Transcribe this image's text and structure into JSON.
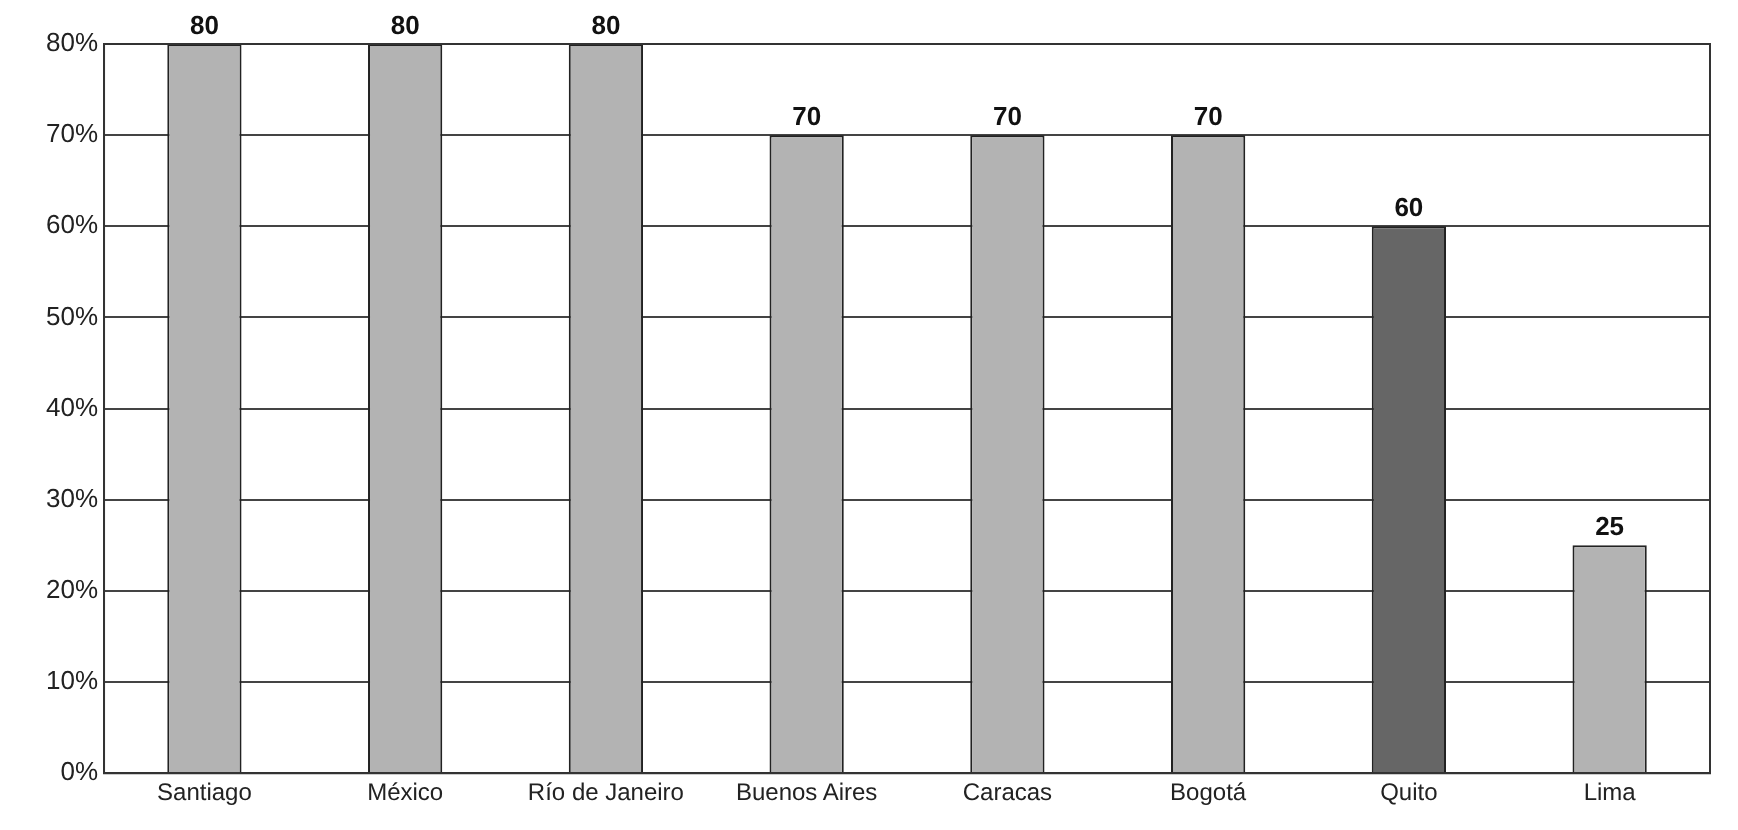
{
  "chart_data": {
    "type": "bar",
    "categories": [
      "Santiago",
      "México",
      "Río de Janeiro",
      "Buenos Aires",
      "Caracas",
      "Bogotá",
      "Quito",
      "Lima"
    ],
    "values": [
      80,
      80,
      80,
      70,
      70,
      70,
      60,
      25
    ],
    "colors": [
      "#b3b3b3",
      "#b3b3b3",
      "#b3b3b3",
      "#b3b3b3",
      "#b3b3b3",
      "#b3b3b3",
      "#666666",
      "#b3b3b3"
    ],
    "ylim": [
      0,
      80
    ],
    "yticks": [
      {
        "value": 0,
        "label": "0%"
      },
      {
        "value": 10,
        "label": "10%"
      },
      {
        "value": 20,
        "label": "20%"
      },
      {
        "value": 30,
        "label": "30%"
      },
      {
        "value": 40,
        "label": "40%"
      },
      {
        "value": 50,
        "label": "50%"
      },
      {
        "value": 60,
        "label": "60%"
      },
      {
        "value": 70,
        "label": "70%"
      },
      {
        "value": 80,
        "label": "80%"
      }
    ],
    "grid": "y",
    "data_labels": true,
    "legend": false
  }
}
